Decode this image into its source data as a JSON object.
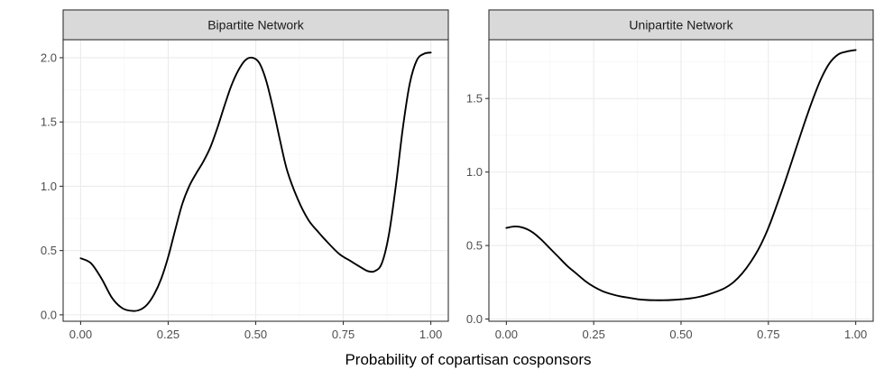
{
  "chart_data": {
    "type": "line",
    "x_title": "Probability of copartisan cosponsors",
    "panels": [
      {
        "strip_label": "Bipartite Network",
        "xlim": [
          -0.05,
          1.05
        ],
        "ylim": [
          -0.05,
          2.14
        ],
        "x_ticks": [
          0.0,
          0.25,
          0.5,
          0.75,
          1.0
        ],
        "x_tick_labels": [
          "0.00",
          "0.25",
          "0.50",
          "0.75",
          "1.00"
        ],
        "y_ticks": [
          0.0,
          0.5,
          1.0,
          1.5,
          2.0
        ],
        "y_tick_labels": [
          "0.0",
          "0.5",
          "1.0",
          "1.5",
          "2.0"
        ],
        "series": [
          {
            "x": [
              0.0,
              0.03,
              0.06,
              0.09,
              0.12,
              0.15,
              0.17,
              0.19,
              0.21,
              0.23,
              0.25,
              0.27,
              0.29,
              0.31,
              0.33,
              0.35,
              0.37,
              0.39,
              0.41,
              0.43,
              0.45,
              0.47,
              0.49,
              0.51,
              0.53,
              0.55,
              0.57,
              0.59,
              0.62,
              0.65,
              0.68,
              0.71,
              0.74,
              0.77,
              0.8,
              0.82,
              0.84,
              0.86,
              0.88,
              0.9,
              0.92,
              0.94,
              0.96,
              0.98,
              1.0
            ],
            "y": [
              0.44,
              0.4,
              0.28,
              0.13,
              0.05,
              0.03,
              0.04,
              0.08,
              0.16,
              0.28,
              0.45,
              0.66,
              0.86,
              1.0,
              1.1,
              1.19,
              1.3,
              1.45,
              1.62,
              1.78,
              1.9,
              1.98,
              2.0,
              1.96,
              1.82,
              1.6,
              1.35,
              1.12,
              0.9,
              0.74,
              0.64,
              0.55,
              0.47,
              0.42,
              0.37,
              0.34,
              0.34,
              0.4,
              0.62,
              1.0,
              1.45,
              1.8,
              1.98,
              2.03,
              2.04
            ]
          }
        ]
      },
      {
        "strip_label": "Unipartite Network",
        "xlim": [
          -0.05,
          1.05
        ],
        "ylim": [
          -0.015,
          1.9
        ],
        "x_ticks": [
          0.0,
          0.25,
          0.5,
          0.75,
          1.0
        ],
        "x_tick_labels": [
          "0.00",
          "0.25",
          "0.50",
          "0.75",
          "1.00"
        ],
        "y_ticks": [
          0.0,
          0.5,
          1.0,
          1.5
        ],
        "y_tick_labels": [
          "0.0",
          "0.5",
          "1.0",
          "1.5"
        ],
        "series": [
          {
            "x": [
              0.0,
              0.025,
              0.05,
              0.075,
              0.1,
              0.125,
              0.15,
              0.175,
              0.2,
              0.225,
              0.25,
              0.275,
              0.3,
              0.325,
              0.35,
              0.375,
              0.4,
              0.425,
              0.45,
              0.475,
              0.5,
              0.525,
              0.55,
              0.575,
              0.6,
              0.625,
              0.65,
              0.675,
              0.7,
              0.725,
              0.75,
              0.775,
              0.8,
              0.825,
              0.85,
              0.875,
              0.9,
              0.925,
              0.95,
              0.975,
              1.0
            ],
            "y": [
              0.62,
              0.63,
              0.62,
              0.59,
              0.54,
              0.48,
              0.42,
              0.36,
              0.31,
              0.26,
              0.22,
              0.19,
              0.17,
              0.155,
              0.145,
              0.135,
              0.13,
              0.128,
              0.128,
              0.13,
              0.134,
              0.14,
              0.15,
              0.165,
              0.185,
              0.21,
              0.25,
              0.31,
              0.39,
              0.49,
              0.62,
              0.78,
              0.95,
              1.13,
              1.31,
              1.48,
              1.63,
              1.74,
              1.8,
              1.82,
              1.83
            ]
          }
        ]
      }
    ]
  }
}
